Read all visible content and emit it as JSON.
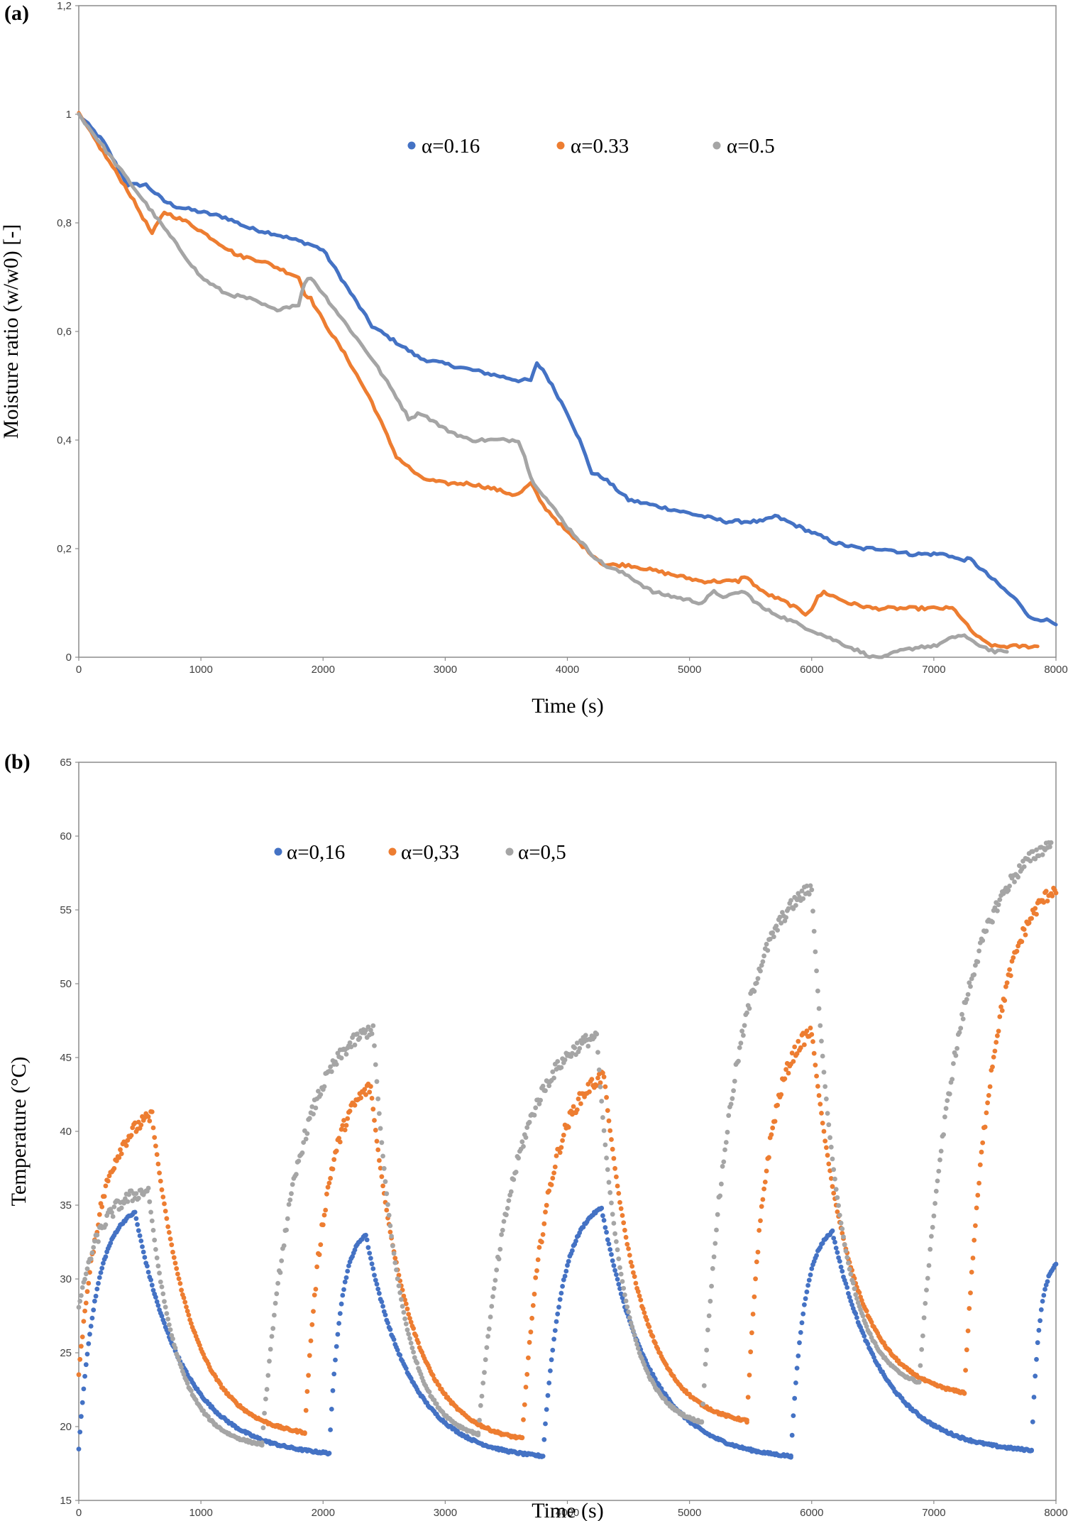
{
  "chart_data": [
    {
      "panel": "(a)",
      "type": "line",
      "title": "",
      "xlabel": "Time (s)",
      "ylabel": "Moisture ratio (w/w0) [-]",
      "xlim": [
        0,
        8000
      ],
      "ylim": [
        0,
        1.2
      ],
      "xticks": [
        "0",
        "1000",
        "2000",
        "3000",
        "4000",
        "5000",
        "6000",
        "7000",
        "8000"
      ],
      "yticks": [
        "0",
        "0,2",
        "0,4",
        "0,6",
        "0,8",
        "1",
        "1,2"
      ],
      "grid": false,
      "legend_position": "top-center",
      "series": [
        {
          "name": "α=0.16",
          "color": "#4472C4",
          "x": [
            0,
            200,
            400,
            550,
            700,
            800,
            1000,
            1200,
            1400,
            1600,
            1750,
            1900,
            2000,
            2200,
            2400,
            2600,
            2800,
            3000,
            3200,
            3400,
            3600,
            3700,
            3750,
            3800,
            3900,
            4000,
            4100,
            4200,
            4300,
            4400,
            4500,
            4700,
            4900,
            5100,
            5300,
            5400,
            5500,
            5600,
            5700,
            5800,
            5900,
            6000,
            6100,
            6200,
            6400,
            6600,
            6800,
            7000,
            7100,
            7200,
            7300,
            7400,
            7500,
            7600,
            7700,
            7800,
            7900,
            8000
          ],
          "y": [
            1.0,
            0.95,
            0.87,
            0.87,
            0.84,
            0.83,
            0.82,
            0.81,
            0.79,
            0.78,
            0.77,
            0.76,
            0.75,
            0.68,
            0.61,
            0.58,
            0.55,
            0.54,
            0.53,
            0.52,
            0.51,
            0.51,
            0.54,
            0.53,
            0.49,
            0.45,
            0.4,
            0.34,
            0.33,
            0.31,
            0.29,
            0.28,
            0.27,
            0.26,
            0.25,
            0.25,
            0.25,
            0.25,
            0.26,
            0.25,
            0.24,
            0.23,
            0.22,
            0.21,
            0.2,
            0.2,
            0.19,
            0.19,
            0.19,
            0.18,
            0.18,
            0.16,
            0.14,
            0.12,
            0.1,
            0.07,
            0.07,
            0.06
          ]
        },
        {
          "name": "α=0.33",
          "color": "#ED7D31",
          "x": [
            0,
            200,
            400,
            550,
            600,
            650,
            700,
            900,
            1100,
            1300,
            1500,
            1700,
            1800,
            1850,
            1900,
            2000,
            2200,
            2400,
            2500,
            2600,
            2700,
            2800,
            3000,
            3200,
            3400,
            3550,
            3600,
            3650,
            3700,
            3800,
            4000,
            4200,
            4300,
            4500,
            4700,
            4900,
            5100,
            5300,
            5400,
            5450,
            5500,
            5600,
            5800,
            5950,
            6000,
            6050,
            6100,
            6300,
            6500,
            6800,
            7000,
            7100,
            7150,
            7200,
            7300,
            7400,
            7500,
            7600,
            7700,
            7800,
            7850
          ],
          "y": [
            1.0,
            0.93,
            0.86,
            0.8,
            0.78,
            0.8,
            0.82,
            0.8,
            0.77,
            0.74,
            0.73,
            0.71,
            0.7,
            0.67,
            0.66,
            0.62,
            0.55,
            0.47,
            0.42,
            0.37,
            0.35,
            0.33,
            0.32,
            0.32,
            0.31,
            0.3,
            0.3,
            0.31,
            0.32,
            0.28,
            0.23,
            0.19,
            0.17,
            0.17,
            0.16,
            0.15,
            0.14,
            0.14,
            0.14,
            0.15,
            0.14,
            0.12,
            0.1,
            0.08,
            0.09,
            0.11,
            0.12,
            0.1,
            0.09,
            0.09,
            0.09,
            0.09,
            0.09,
            0.08,
            0.05,
            0.03,
            0.02,
            0.02,
            0.02,
            0.02,
            0.02
          ]
        },
        {
          "name": "α=0.5",
          "color": "#A5A5A5",
          "x": [
            0,
            200,
            400,
            600,
            800,
            900,
            1000,
            1200,
            1400,
            1600,
            1800,
            1850,
            1900,
            2000,
            2200,
            2400,
            2600,
            2700,
            2800,
            3000,
            3200,
            3400,
            3500,
            3600,
            3650,
            3700,
            3800,
            4000,
            4200,
            4300,
            4500,
            4700,
            4900,
            5100,
            5200,
            5300,
            5400,
            5450,
            5500,
            5600,
            5800,
            6000,
            6200,
            6400,
            6500,
            6600,
            6700,
            6900,
            7000,
            7100,
            7200,
            7250,
            7300,
            7400,
            7500,
            7600
          ],
          "y": [
            1.0,
            0.94,
            0.88,
            0.82,
            0.76,
            0.73,
            0.7,
            0.67,
            0.66,
            0.64,
            0.65,
            0.69,
            0.7,
            0.67,
            0.61,
            0.55,
            0.48,
            0.44,
            0.45,
            0.42,
            0.4,
            0.4,
            0.4,
            0.4,
            0.37,
            0.33,
            0.3,
            0.24,
            0.19,
            0.17,
            0.15,
            0.12,
            0.11,
            0.1,
            0.12,
            0.11,
            0.12,
            0.12,
            0.11,
            0.09,
            0.07,
            0.05,
            0.03,
            0.01,
            0.0,
            0.0,
            0.01,
            0.02,
            0.02,
            0.03,
            0.04,
            0.04,
            0.03,
            0.02,
            0.01,
            0.01
          ]
        }
      ]
    },
    {
      "panel": "(b)",
      "type": "scatter",
      "title": "",
      "xlabel": "Time (s)",
      "ylabel": "Temperature (°C)",
      "xlim": [
        0,
        8000
      ],
      "ylim": [
        15,
        65
      ],
      "xticks": [
        "0",
        "1000",
        "2000",
        "3000",
        "4000",
        "5000",
        "6000",
        "7000",
        "8000"
      ],
      "yticks": [
        "15",
        "20",
        "25",
        "30",
        "35",
        "40",
        "45",
        "50",
        "55",
        "60",
        "65"
      ],
      "grid": false,
      "legend_position": "top-center",
      "series": [
        {
          "name": "α=0,16",
          "color": "#4472C4",
          "cycles": [
            {
              "t0": 0,
              "T0": 18.5,
              "tp": 460,
              "Tp": 34.5,
              "t1": 2050,
              "T1": 18.2
            },
            {
              "t0": 2050,
              "T0": 18.2,
              "tp": 2350,
              "Tp": 33.0,
              "t1": 3800,
              "T1": 18.0
            },
            {
              "t0": 3800,
              "T0": 18.0,
              "tp": 4280,
              "Tp": 34.8,
              "t1": 5830,
              "T1": 18.0
            },
            {
              "t0": 5830,
              "T0": 18.0,
              "tp": 6170,
              "Tp": 33.2,
              "t1": 7800,
              "T1": 18.4
            },
            {
              "t0": 7800,
              "T0": 18.4,
              "tp": 8000,
              "Tp": 31.0,
              "t1": 8000,
              "T1": 31.0
            }
          ]
        },
        {
          "name": "α=0,33",
          "color": "#ED7D31",
          "cycles": [
            {
              "t0": 0,
              "T0": 23.5,
              "tp": 600,
              "Tp": 41.0,
              "t1": 1850,
              "T1": 19.6
            },
            {
              "t0": 1850,
              "T0": 19.6,
              "tp": 2390,
              "Tp": 43.0,
              "t1": 3630,
              "T1": 19.2
            },
            {
              "t0": 3630,
              "T0": 19.2,
              "tp": 4300,
              "Tp": 43.8,
              "t1": 5470,
              "T1": 20.4
            },
            {
              "t0": 5470,
              "T0": 20.4,
              "tp": 6000,
              "Tp": 46.8,
              "t1": 7250,
              "T1": 22.3
            },
            {
              "t0": 7250,
              "T0": 22.3,
              "tp": 8000,
              "Tp": 56.5,
              "t1": 8000,
              "T1": 56.5
            }
          ]
        },
        {
          "name": "α=0,5",
          "color": "#A5A5A5",
          "cycles": [
            {
              "t0": 0,
              "T0": 28.0,
              "tp": 570,
              "Tp": 36.0,
              "t1": 1500,
              "T1": 18.8
            },
            {
              "t0": 1500,
              "T0": 18.8,
              "tp": 2410,
              "Tp": 47.0,
              "t1": 3270,
              "T1": 19.5
            },
            {
              "t0": 3270,
              "T0": 19.5,
              "tp": 4240,
              "Tp": 46.5,
              "t1": 5100,
              "T1": 20.3
            },
            {
              "t0": 5100,
              "T0": 20.3,
              "tp": 6000,
              "Tp": 56.5,
              "t1": 6880,
              "T1": 23.0
            },
            {
              "t0": 6880,
              "T0": 23.0,
              "tp": 7960,
              "Tp": 59.5,
              "t1": 7960,
              "T1": 59.5
            }
          ]
        }
      ]
    }
  ]
}
